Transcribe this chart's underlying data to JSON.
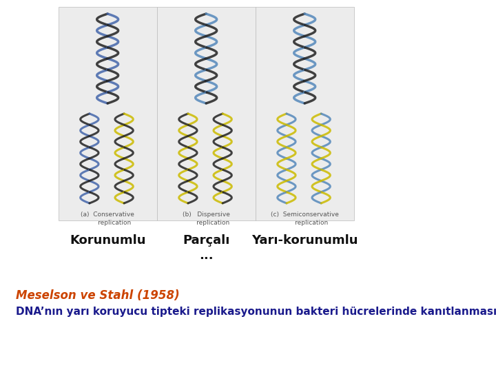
{
  "title_line1": "Meselson ve Stahl (1958)",
  "title_line2": "DNA’nın yarı koruyucu tipteki replikasyonunun bakteri hücrelerinde kanıtlanması",
  "title_color": "#cc4400",
  "body_color": "#1a1a8c",
  "label1_en": "(a)  Conservative\n       replication",
  "label2_en": "(b)   Dispersive\n       replication",
  "label3_en": "(c)  Semiconservative\n       replication",
  "label1_tr": "Korunumlu",
  "label2_tr": "Parçalı\n...",
  "label3_tr": "Yarı-korunumlu",
  "bg_color": "#ffffff",
  "box_color": "#e8e8e8",
  "figsize": [
    7.2,
    5.4
  ],
  "dpi": 100
}
